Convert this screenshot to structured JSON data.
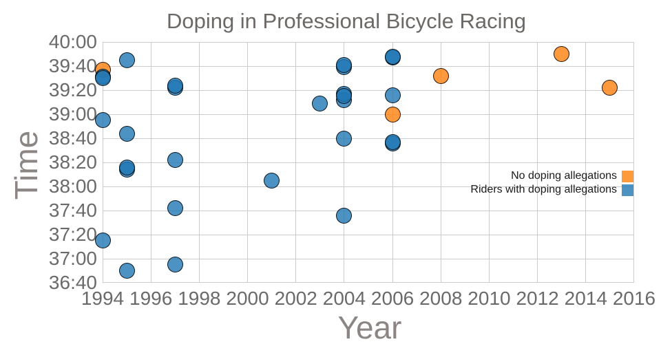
{
  "colors": {
    "no_doping": "#ff7f0e",
    "doping": "#1f77b4",
    "dot_fill_opacity": 0.8,
    "dot_stroke": "#000000",
    "grid": "#cccccc",
    "tick_text": "#6a6a6a",
    "axis_label_text": "#8b8683",
    "title_text": "#6b6866",
    "legend_text": "#1a1a1a"
  },
  "chart_data": {
    "type": "scatter",
    "title": "Doping in Professional Bicycle Racing",
    "xlabel": "Year",
    "ylabel": "Time",
    "xlim": [
      1994,
      2016
    ],
    "ylim": [
      "36:40",
      "40:00"
    ],
    "grid": true,
    "legend_position": "right-middle",
    "x_ticks": [
      1994,
      1996,
      1998,
      2000,
      2002,
      2004,
      2006,
      2008,
      2010,
      2012,
      2014,
      2016
    ],
    "y_ticks": [
      "40:00",
      "39:40",
      "39:20",
      "39:00",
      "38:40",
      "38:20",
      "38:00",
      "37:40",
      "37:20",
      "37:00",
      "36:40"
    ],
    "series": [
      {
        "name": "No doping allegations",
        "color": "#ff7f0e",
        "points": [
          {
            "year": 1994,
            "time": "39:37"
          },
          {
            "year": 2006,
            "time": "39:00"
          },
          {
            "year": 2008,
            "time": "39:32"
          },
          {
            "year": 2013,
            "time": "39:50"
          },
          {
            "year": 2015,
            "time": "39:22"
          }
        ]
      },
      {
        "name": "Riders with doping allegations",
        "color": "#1f77b4",
        "points": [
          {
            "year": 1994,
            "time": "39:31"
          },
          {
            "year": 1994,
            "time": "39:30"
          },
          {
            "year": 1994,
            "time": "38:55"
          },
          {
            "year": 1994,
            "time": "37:15"
          },
          {
            "year": 1995,
            "time": "39:45"
          },
          {
            "year": 1995,
            "time": "38:44"
          },
          {
            "year": 1995,
            "time": "38:14"
          },
          {
            "year": 1995,
            "time": "38:16"
          },
          {
            "year": 1995,
            "time": "36:50"
          },
          {
            "year": 1997,
            "time": "39:22"
          },
          {
            "year": 1997,
            "time": "39:24"
          },
          {
            "year": 1997,
            "time": "38:22"
          },
          {
            "year": 1997,
            "time": "37:42"
          },
          {
            "year": 1997,
            "time": "36:55"
          },
          {
            "year": 2001,
            "time": "38:05"
          },
          {
            "year": 2003,
            "time": "39:09"
          },
          {
            "year": 2004,
            "time": "39:39"
          },
          {
            "year": 2004,
            "time": "39:41"
          },
          {
            "year": 2004,
            "time": "39:12"
          },
          {
            "year": 2004,
            "time": "39:17"
          },
          {
            "year": 2004,
            "time": "39:15"
          },
          {
            "year": 2004,
            "time": "38:40"
          },
          {
            "year": 2004,
            "time": "37:36"
          },
          {
            "year": 2006,
            "time": "39:47"
          },
          {
            "year": 2006,
            "time": "39:48"
          },
          {
            "year": 2006,
            "time": "39:16"
          },
          {
            "year": 2006,
            "time": "38:36"
          },
          {
            "year": 2006,
            "time": "38:37"
          }
        ]
      }
    ]
  }
}
